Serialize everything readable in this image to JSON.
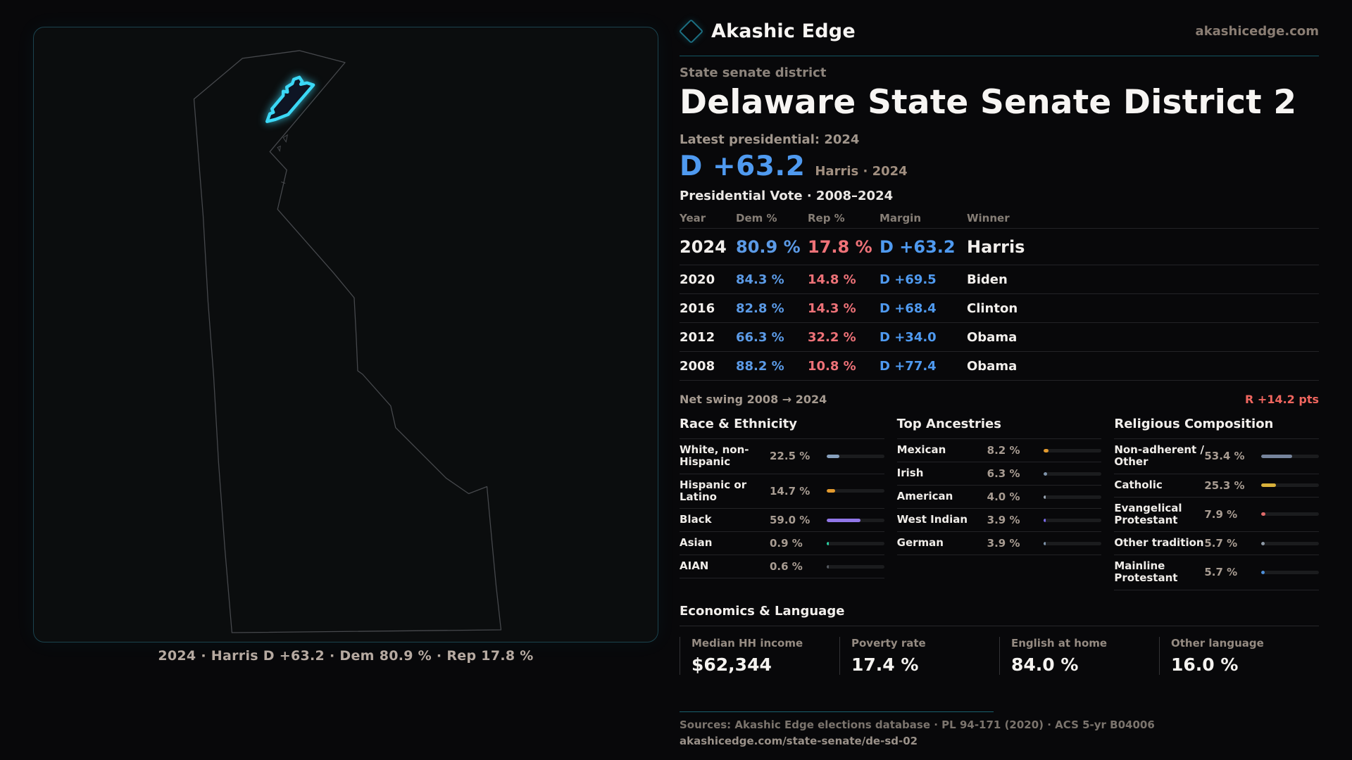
{
  "brand": {
    "name": "Akashic Edge",
    "domain": "akashicedge.com"
  },
  "header": {
    "kicker": "State senate district",
    "title": "Delaware State Senate District 2",
    "latest_label": "Latest presidential: 2024",
    "headline_margin": "D +63.2",
    "headline_note": "Harris · 2024"
  },
  "vote_table": {
    "title": "Presidential Vote · 2008–2024",
    "columns": [
      "Year",
      "Dem %",
      "Rep %",
      "Margin",
      "Winner"
    ],
    "rows": [
      {
        "year": "2024",
        "dem": "80.9 %",
        "rep": "17.8 %",
        "margin": "D +63.2",
        "winner": "Harris",
        "emphasis": true
      },
      {
        "year": "2020",
        "dem": "84.3 %",
        "rep": "14.8 %",
        "margin": "D +69.5",
        "winner": "Biden",
        "emphasis": false
      },
      {
        "year": "2016",
        "dem": "82.8 %",
        "rep": "14.3 %",
        "margin": "D +68.4",
        "winner": "Clinton",
        "emphasis": false
      },
      {
        "year": "2012",
        "dem": "66.3 %",
        "rep": "32.2 %",
        "margin": "D +34.0",
        "winner": "Obama",
        "emphasis": false
      },
      {
        "year": "2008",
        "dem": "88.2 %",
        "rep": "10.8 %",
        "margin": "D +77.4",
        "winner": "Obama",
        "emphasis": false
      }
    ],
    "net_swing_label": "Net swing 2008 → 2024",
    "net_swing_value": "R +14.2 pts",
    "dem_color": "#5b9ae6",
    "rep_color": "#ee7278",
    "margin_color": "#4f9af0",
    "net_swing_color": "#f0665f"
  },
  "demographic_panels": [
    {
      "title": "Race & Ethnicity",
      "rows": [
        {
          "label": "White, non-Hispanic",
          "value": "22.5 %",
          "pct": 22.5,
          "color": "#87a0bd"
        },
        {
          "label": "Hispanic or Latino",
          "value": "14.7 %",
          "pct": 14.7,
          "color": "#e39a2e"
        },
        {
          "label": "Black",
          "value": "59.0 %",
          "pct": 59.0,
          "color": "#9177e8"
        },
        {
          "label": "Asian",
          "value": "0.9 %",
          "pct": 0.9,
          "color": "#2ad1a3"
        },
        {
          "label": "AIAN",
          "value": "0.6 %",
          "pct": 0.6,
          "color": "#55595f"
        }
      ]
    },
    {
      "title": "Top Ancestries",
      "rows": [
        {
          "label": "Mexican",
          "value": "8.2 %",
          "pct": 8.2,
          "color": "#e39a2e"
        },
        {
          "label": "Irish",
          "value": "6.3 %",
          "pct": 6.3,
          "color": "#7f94ab"
        },
        {
          "label": "American",
          "value": "4.0 %",
          "pct": 4.0,
          "color": "#9aa7b5"
        },
        {
          "label": "West Indian",
          "value": "3.9 %",
          "pct": 3.9,
          "color": "#7d6cf0"
        },
        {
          "label": "German",
          "value": "3.9 %",
          "pct": 3.9,
          "color": "#7f94ab"
        }
      ]
    },
    {
      "title": "Religious Composition",
      "rows": [
        {
          "label": "Non-adherent / Other",
          "value": "53.4 %",
          "pct": 53.4,
          "color": "#76849c"
        },
        {
          "label": "Catholic",
          "value": "25.3 %",
          "pct": 25.3,
          "color": "#d9b13b"
        },
        {
          "label": "Evangelical Protestant",
          "value": "7.9 %",
          "pct": 7.9,
          "color": "#e06a6a"
        },
        {
          "label": "Other tradition",
          "value": "5.7 %",
          "pct": 5.7,
          "color": "#8e99a6"
        },
        {
          "label": "Mainline Protestant",
          "value": "5.7 %",
          "pct": 5.7,
          "color": "#4e8fd9"
        }
      ]
    }
  ],
  "economics": {
    "title": "Economics & Language",
    "stats": [
      {
        "label": "Median HH income",
        "value": "$62,344"
      },
      {
        "label": "Poverty rate",
        "value": "17.4 %"
      },
      {
        "label": "English at home",
        "value": "84.0 %"
      },
      {
        "label": "Other language",
        "value": "16.0 %"
      }
    ]
  },
  "footer": {
    "sources": "Sources: Akashic Edge elections database · PL 94-171 (2020) · ACS 5-yr B04006",
    "permalink": "akashicedge.com/state-senate/de-sd-02"
  },
  "map": {
    "caption": "2024 · Harris D +63.2 · Dem 80.9 % · Rep 17.8 %",
    "highlight_color": "#3bd8f6",
    "highlight_fill": "#0e1524",
    "outline_color": "#46484c"
  }
}
